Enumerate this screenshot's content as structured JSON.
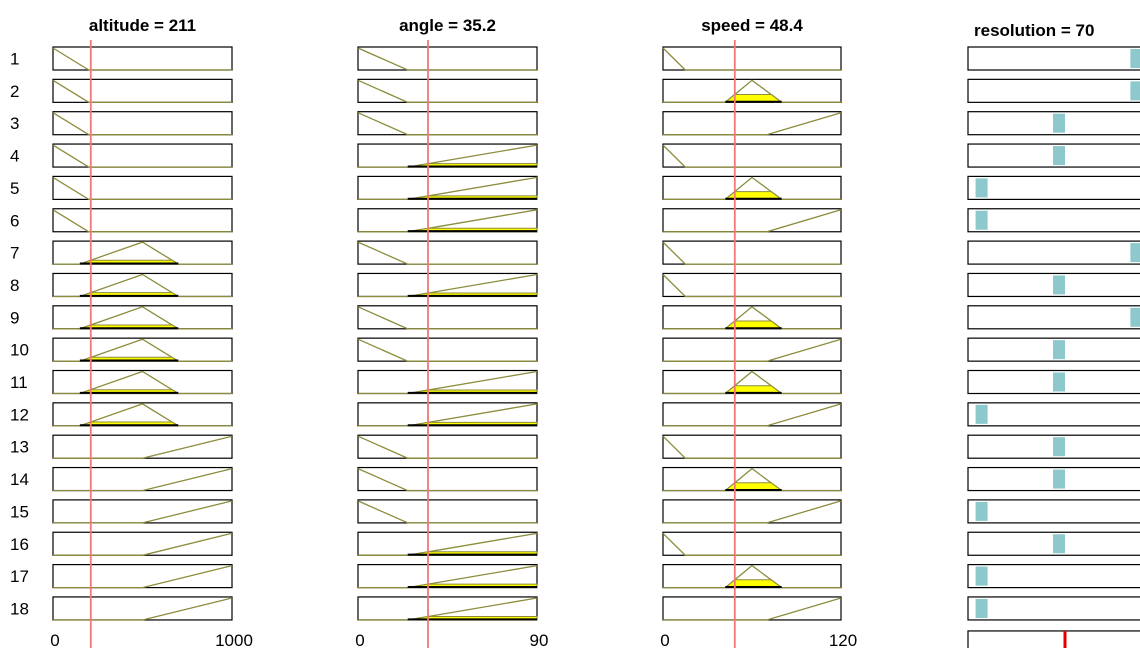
{
  "inputs": [
    {
      "title": "altitude = 211",
      "name": "altitude",
      "value": 211,
      "min": 0,
      "max": 1000,
      "tick_min": "0",
      "tick_max": "1000",
      "mfs": {
        "low": {
          "type": "trimf",
          "params": [
            -1,
            0,
            200
          ]
        },
        "mid": {
          "type": "trimf",
          "params": [
            150,
            500,
            700
          ]
        },
        "high": {
          "type": "trimf",
          "params": [
            500,
            1000,
            1001
          ]
        }
      }
    },
    {
      "title": "angle = 35.2",
      "name": "angle",
      "value": 35.2,
      "min": 0,
      "max": 90,
      "tick_min": "0",
      "tick_max": "90",
      "mfs": {
        "low": {
          "type": "trimf",
          "params": [
            -1,
            0,
            25
          ]
        },
        "high": {
          "type": "trimf",
          "params": [
            25,
            90,
            91
          ]
        }
      }
    },
    {
      "title": "speed = 48.4",
      "name": "speed",
      "value": 48.4,
      "min": 0,
      "max": 120,
      "tick_min": "0",
      "tick_max": "120",
      "mfs": {
        "low": {
          "type": "trimf",
          "params": [
            -1,
            0,
            15
          ]
        },
        "mid": {
          "type": "trimf",
          "params": [
            42,
            60,
            80
          ]
        },
        "high": {
          "type": "trimf",
          "params": [
            70,
            120,
            121
          ]
        }
      }
    }
  ],
  "output": {
    "title": "resolution = 70",
    "name": "resolution",
    "value": 70
  },
  "rules": [
    {
      "n": "1",
      "altitude": "low",
      "angle": "low",
      "speed": "low",
      "output_level": 0.95
    },
    {
      "n": "2",
      "altitude": "low",
      "angle": "low",
      "speed": "mid",
      "output_level": 0.95
    },
    {
      "n": "3",
      "altitude": "low",
      "angle": "low",
      "speed": "high",
      "output_level": 0.5
    },
    {
      "n": "4",
      "altitude": "low",
      "angle": "high",
      "speed": "low",
      "output_level": 0.5
    },
    {
      "n": "5",
      "altitude": "low",
      "angle": "high",
      "speed": "mid",
      "output_level": 0.05
    },
    {
      "n": "6",
      "altitude": "low",
      "angle": "high",
      "speed": "high",
      "output_level": 0.05
    },
    {
      "n": "7",
      "altitude": "mid",
      "angle": "low",
      "speed": "low",
      "output_level": 0.95
    },
    {
      "n": "8",
      "altitude": "mid",
      "angle": "high",
      "speed": "low",
      "output_level": 0.5
    },
    {
      "n": "9",
      "altitude": "mid",
      "angle": "low",
      "speed": "mid",
      "output_level": 0.95
    },
    {
      "n": "10",
      "altitude": "mid",
      "angle": "low",
      "speed": "high",
      "output_level": 0.5
    },
    {
      "n": "11",
      "altitude": "mid",
      "angle": "high",
      "speed": "mid",
      "output_level": 0.5
    },
    {
      "n": "12",
      "altitude": "mid",
      "angle": "high",
      "speed": "high",
      "output_level": 0.05
    },
    {
      "n": "13",
      "altitude": "high",
      "angle": "low",
      "speed": "low",
      "output_level": 0.5
    },
    {
      "n": "14",
      "altitude": "high",
      "angle": "low",
      "speed": "mid",
      "output_level": 0.5
    },
    {
      "n": "15",
      "altitude": "high",
      "angle": "low",
      "speed": "high",
      "output_level": 0.05
    },
    {
      "n": "16",
      "altitude": "high",
      "angle": "high",
      "speed": "low",
      "output_level": 0.5
    },
    {
      "n": "17",
      "altitude": "high",
      "angle": "high",
      "speed": "mid",
      "output_level": 0.05
    },
    {
      "n": "18",
      "altitude": "high",
      "angle": "high",
      "speed": "high",
      "output_level": 0.05
    }
  ],
  "colors": {
    "mf_line": "#8c8c3c",
    "mf_fill": "#ffff00",
    "value_line": "#f07878",
    "output_bar": "#8cc8cc",
    "aggregate_marker": "#e00000",
    "box_border": "#000000"
  }
}
